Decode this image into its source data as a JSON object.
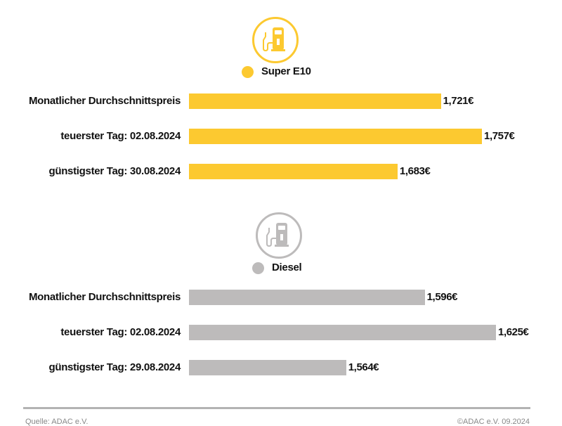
{
  "chart_data": [
    {
      "type": "bar",
      "orientation": "horizontal",
      "series_name": "Super E10",
      "color": "#FCC930",
      "icon": "fuel-pump-icon",
      "categories": [
        "Monatlicher Durchschnittspreis",
        "teuerster Tag: 02.08.2024",
        "günstigster Tag: 30.08.2024"
      ],
      "values": [
        1.721,
        1.757,
        1.683
      ],
      "value_labels": [
        "1,721€",
        "1,757€",
        "1,683€"
      ],
      "xlim": [
        1.5,
        1.757
      ]
    },
    {
      "type": "bar",
      "orientation": "horizontal",
      "series_name": "Diesel",
      "color": "#BDBBBB",
      "icon": "fuel-pump-icon",
      "categories": [
        "Monatlicher Durchschnittspreis",
        "teuerster Tag: 02.08.2024",
        "günstigster Tag: 29.08.2024"
      ],
      "values": [
        1.596,
        1.625,
        1.564
      ],
      "value_labels": [
        "1,596€",
        "1,625€",
        "1,564€"
      ],
      "xlim": [
        1.5,
        1.625
      ]
    }
  ],
  "footer": {
    "source": "Quelle: ADAC e.V.",
    "copyright": "©ADAC e.V. 09.2024"
  }
}
